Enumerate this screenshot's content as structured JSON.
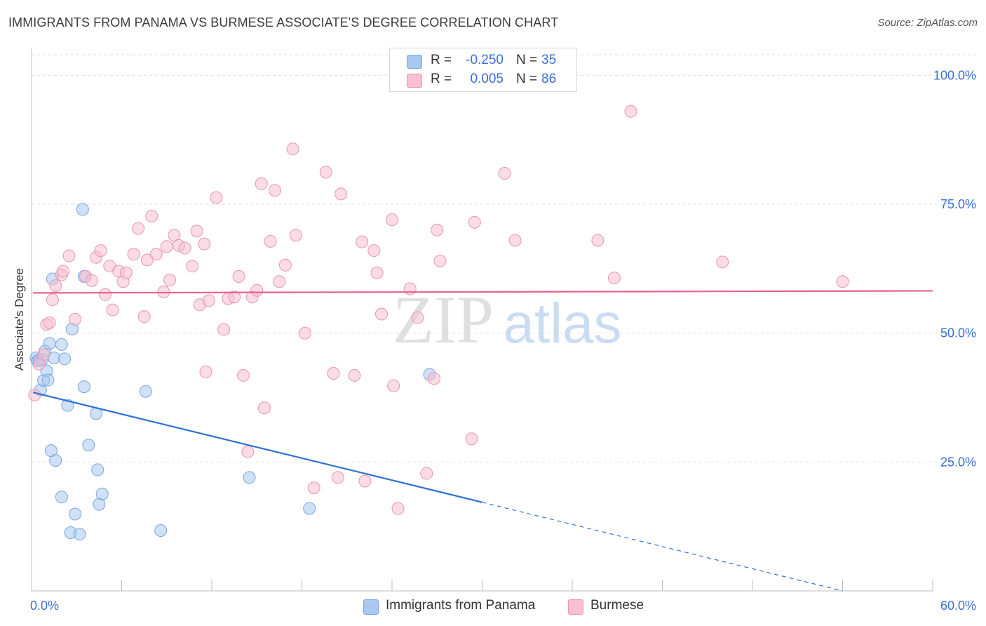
{
  "title": "IMMIGRANTS FROM PANAMA VS BURMESE ASSOCIATE'S DEGREE CORRELATION CHART",
  "source": "Source: ZipAtlas.com",
  "watermark": {
    "zip": "ZIP",
    "atlas": "atlas"
  },
  "legend": {
    "rows": [
      {
        "r_label": "R =",
        "r_value": "-0.250",
        "n_label": "N =",
        "n_value": "35",
        "color": "#a8c8f0",
        "border": "#7aa6e0"
      },
      {
        "r_label": "R =",
        "r_value": "0.005",
        "n_label": "N =",
        "n_value": "86",
        "color": "#f8c0d0",
        "border": "#e896b0"
      }
    ]
  },
  "bottom_legend": [
    {
      "label": "Immigrants from Panama",
      "color": "#a8c8f0",
      "border": "#7aa6e0"
    },
    {
      "label": "Burmese",
      "color": "#f8c0d0",
      "border": "#e896b0"
    }
  ],
  "chart_data": {
    "type": "scatter",
    "title": "IMMIGRANTS FROM PANAMA VS BURMESE ASSOCIATE'S DEGREE CORRELATION CHART",
    "xlabel": "",
    "ylabel": "Associate's Degree",
    "xlim": [
      0,
      60
    ],
    "ylim": [
      0,
      104
    ],
    "x_tick_labels": [
      "0.0%",
      "60.0%"
    ],
    "y_ticks": [
      25,
      50,
      75,
      100
    ],
    "y_tick_labels": [
      "25.0%",
      "50.0%",
      "75.0%",
      "100.0%"
    ],
    "grid": true,
    "legend_position": "top-center",
    "series": [
      {
        "name": "Immigrants from Panama",
        "color": "#a8c8f0",
        "stroke": "#7aa6e0",
        "trend_color": "#2f72d6",
        "trend": {
          "x0": 0.1,
          "y0": 38.5,
          "x1": 30.0,
          "y1": 17.2,
          "dash_to_x": 54.0,
          "dash_to_y": 0.0
        },
        "points": [
          [
            0.3,
            45.2
          ],
          [
            0.4,
            44.6
          ],
          [
            0.5,
            44.8
          ],
          [
            0.6,
            39.0
          ],
          [
            0.8,
            40.8
          ],
          [
            0.9,
            46.5
          ],
          [
            1.0,
            42.7
          ],
          [
            1.2,
            48.0
          ],
          [
            1.3,
            27.2
          ],
          [
            1.4,
            60.5
          ],
          [
            1.5,
            45.2
          ],
          [
            1.6,
            25.3
          ],
          [
            2.0,
            47.8
          ],
          [
            2.0,
            18.2
          ],
          [
            2.4,
            36.0
          ],
          [
            2.6,
            11.3
          ],
          [
            2.7,
            50.8
          ],
          [
            2.9,
            14.9
          ],
          [
            3.2,
            11.0
          ],
          [
            3.4,
            74.0
          ],
          [
            3.5,
            61.0
          ],
          [
            3.5,
            39.6
          ],
          [
            3.8,
            28.3
          ],
          [
            4.3,
            34.4
          ],
          [
            4.4,
            23.5
          ],
          [
            4.5,
            16.8
          ],
          [
            4.7,
            18.8
          ],
          [
            7.6,
            38.7
          ],
          [
            8.6,
            11.7
          ],
          [
            14.5,
            22.0
          ],
          [
            18.5,
            16.0
          ],
          [
            26.5,
            42.0
          ],
          [
            0.7,
            44.9
          ],
          [
            1.1,
            40.9
          ],
          [
            2.2,
            45.0
          ]
        ]
      },
      {
        "name": "Burmese",
        "color": "#f8c0d0",
        "stroke": "#e896b0",
        "trend_color": "#e86090",
        "trend": {
          "x0": 0.1,
          "y0": 57.8,
          "x1": 60.0,
          "y1": 58.2
        },
        "points": [
          [
            0.2,
            38.0
          ],
          [
            0.8,
            45.8
          ],
          [
            1.0,
            51.7
          ],
          [
            1.2,
            52.0
          ],
          [
            1.4,
            56.5
          ],
          [
            1.6,
            59.2
          ],
          [
            2.0,
            61.3
          ],
          [
            2.1,
            62.0
          ],
          [
            2.5,
            65.0
          ],
          [
            2.9,
            52.7
          ],
          [
            3.6,
            61.0
          ],
          [
            4.0,
            60.2
          ],
          [
            4.3,
            64.7
          ],
          [
            4.6,
            66.0
          ],
          [
            4.9,
            57.5
          ],
          [
            5.2,
            63.0
          ],
          [
            5.4,
            54.5
          ],
          [
            5.8,
            62.0
          ],
          [
            6.1,
            60.0
          ],
          [
            6.3,
            61.7
          ],
          [
            6.8,
            65.3
          ],
          [
            7.1,
            70.3
          ],
          [
            7.5,
            53.2
          ],
          [
            7.7,
            64.2
          ],
          [
            8.0,
            72.7
          ],
          [
            8.3,
            65.3
          ],
          [
            8.8,
            58.0
          ],
          [
            9.0,
            66.8
          ],
          [
            9.2,
            60.3
          ],
          [
            9.5,
            69.0
          ],
          [
            9.8,
            67.0
          ],
          [
            10.2,
            66.5
          ],
          [
            10.7,
            63.0
          ],
          [
            11.0,
            69.8
          ],
          [
            11.2,
            55.5
          ],
          [
            11.5,
            67.3
          ],
          [
            11.6,
            42.5
          ],
          [
            11.8,
            56.3
          ],
          [
            12.3,
            76.3
          ],
          [
            12.8,
            50.7
          ],
          [
            13.1,
            56.7
          ],
          [
            13.5,
            57.0
          ],
          [
            13.8,
            61.0
          ],
          [
            14.1,
            41.8
          ],
          [
            14.4,
            27.0
          ],
          [
            14.7,
            57.0
          ],
          [
            15.0,
            58.3
          ],
          [
            15.3,
            79.0
          ],
          [
            15.5,
            35.5
          ],
          [
            15.9,
            67.8
          ],
          [
            16.2,
            77.7
          ],
          [
            16.5,
            60.0
          ],
          [
            16.9,
            63.2
          ],
          [
            17.4,
            85.7
          ],
          [
            17.6,
            69.0
          ],
          [
            18.2,
            50.0
          ],
          [
            18.8,
            20.0
          ],
          [
            19.6,
            81.2
          ],
          [
            20.1,
            42.2
          ],
          [
            20.4,
            22.0
          ],
          [
            20.6,
            77.0
          ],
          [
            21.5,
            41.8
          ],
          [
            22.0,
            67.7
          ],
          [
            22.2,
            21.3
          ],
          [
            22.8,
            66.0
          ],
          [
            23.0,
            61.7
          ],
          [
            23.3,
            53.7
          ],
          [
            24.0,
            72.0
          ],
          [
            24.1,
            39.8
          ],
          [
            24.4,
            16.0
          ],
          [
            25.2,
            58.6
          ],
          [
            25.7,
            53.0
          ],
          [
            26.3,
            22.8
          ],
          [
            26.8,
            41.2
          ],
          [
            27.0,
            70.0
          ],
          [
            27.2,
            64.0
          ],
          [
            29.3,
            29.5
          ],
          [
            29.5,
            71.5
          ],
          [
            31.5,
            81.0
          ],
          [
            32.2,
            68.0
          ],
          [
            37.7,
            68.0
          ],
          [
            38.8,
            60.7
          ],
          [
            39.9,
            93.0
          ],
          [
            46.0,
            63.8
          ],
          [
            54.0,
            60.0
          ],
          [
            0.5,
            44.0
          ]
        ]
      }
    ]
  }
}
